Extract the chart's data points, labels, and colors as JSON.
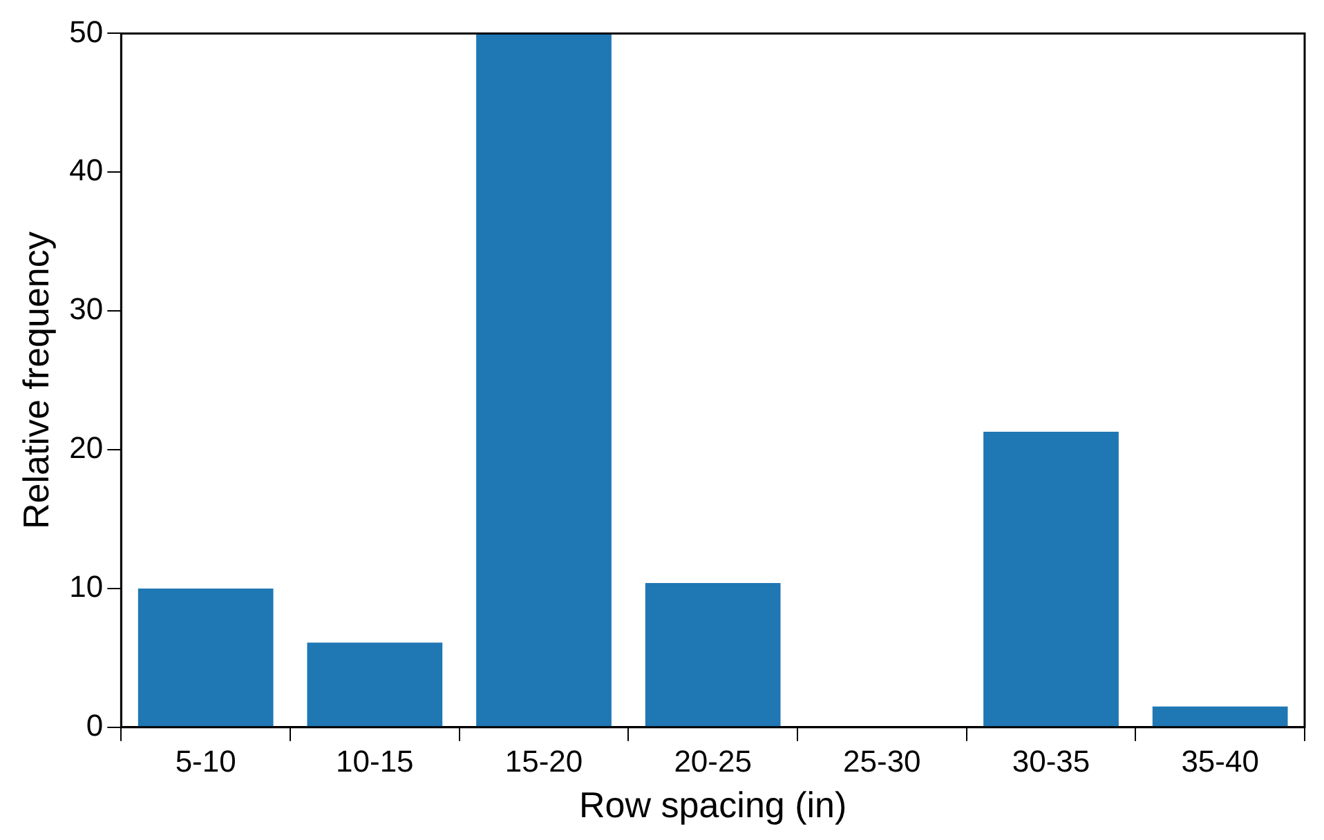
{
  "chart_data": {
    "type": "bar",
    "xlabel": "Row spacing (in)",
    "ylabel": "Relative frequency",
    "categories": [
      "5-10",
      "10-15",
      "15-20",
      "20-25",
      "25-30",
      "30-35",
      "35-40"
    ],
    "values": [
      10.0,
      6.1,
      50,
      10.4,
      0,
      21.3,
      1.5
    ],
    "color": "#1f77b4",
    "ylim": [
      0,
      50
    ],
    "yticks": [
      0,
      10,
      20,
      30,
      40,
      50
    ],
    "grid": false,
    "legend": false
  }
}
